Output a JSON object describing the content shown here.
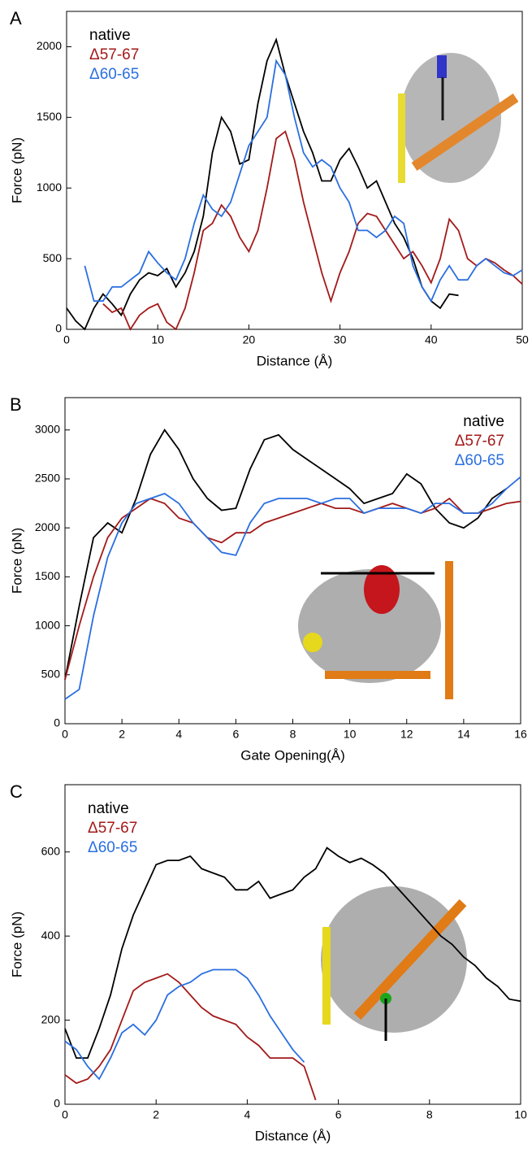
{
  "chart_data": [
    {
      "type": "line",
      "panel_label": "A",
      "xlabel": "Distance (Å)",
      "ylabel": "Force (pN)",
      "xlim": [
        0,
        50
      ],
      "xticks": [
        0,
        10,
        20,
        30,
        40,
        50
      ],
      "ylim": [
        0,
        2250
      ],
      "yticks": [
        0,
        500,
        1000,
        1500,
        2000
      ],
      "legend": "upper left",
      "x": [
        0,
        1,
        2,
        3,
        4,
        5,
        6,
        7,
        8,
        9,
        10,
        11,
        12,
        13,
        14,
        15,
        16,
        17,
        18,
        19,
        20,
        21,
        22,
        23,
        24,
        25,
        26,
        27,
        28,
        29,
        30,
        31,
        32,
        33,
        34,
        35,
        36,
        37,
        38,
        39,
        40,
        41,
        42,
        43,
        44,
        45,
        46,
        47,
        48,
        49,
        50
      ],
      "series": [
        {
          "name": "native",
          "color": "#000000",
          "values": [
            150,
            60,
            0,
            150,
            250,
            180,
            100,
            250,
            350,
            400,
            380,
            430,
            300,
            400,
            550,
            800,
            1250,
            1500,
            1400,
            1170,
            1200,
            1600,
            1900,
            2050,
            1800,
            1600,
            1400,
            1250,
            1050,
            1050,
            1200,
            1280,
            1150,
            1000,
            1050,
            900,
            750,
            650,
            500,
            300,
            200,
            150,
            250,
            240,
            null,
            null,
            null,
            null,
            null,
            null,
            null
          ]
        },
        {
          "name": "Δ57-67",
          "color": "#a31a1a",
          "values": [
            null,
            null,
            null,
            null,
            180,
            120,
            150,
            0,
            100,
            150,
            180,
            50,
            0,
            150,
            400,
            700,
            750,
            880,
            800,
            650,
            550,
            700,
            1000,
            1350,
            1400,
            1200,
            900,
            650,
            400,
            200,
            400,
            550,
            750,
            820,
            800,
            700,
            600,
            500,
            550,
            450,
            330,
            500,
            780,
            700,
            500,
            450,
            500,
            470,
            420,
            380,
            320
          ]
        },
        {
          "name": "Δ60-65",
          "color": "#2a6fe0",
          "values": [
            null,
            null,
            450,
            200,
            200,
            300,
            300,
            350,
            400,
            550,
            470,
            400,
            350,
            500,
            750,
            950,
            850,
            800,
            900,
            1100,
            1300,
            1400,
            1500,
            1900,
            1800,
            1500,
            1250,
            1150,
            1200,
            1150,
            1000,
            900,
            700,
            700,
            650,
            700,
            800,
            750,
            450,
            300,
            200,
            350,
            450,
            350,
            350,
            450,
            500,
            450,
            400,
            380,
            420
          ]
        }
      ]
    },
    {
      "type": "line",
      "panel_label": "B",
      "xlabel": "Gate Opening(Å)",
      "ylabel": "Force (pN)",
      "xlim": [
        0,
        16
      ],
      "xticks": [
        0,
        2,
        4,
        6,
        8,
        10,
        12,
        14,
        16
      ],
      "ylim": [
        0,
        3330
      ],
      "yticks": [
        0,
        500,
        1000,
        1500,
        2000,
        2500,
        3000
      ],
      "legend": "upper right",
      "x": [
        0,
        0.5,
        1,
        1.5,
        2,
        2.5,
        3,
        3.5,
        4,
        4.5,
        5,
        5.5,
        6,
        6.5,
        7,
        7.5,
        8,
        8.5,
        9,
        9.5,
        10,
        10.5,
        11,
        11.5,
        12,
        12.5,
        13,
        13.5,
        14,
        14.5,
        15,
        15.5,
        16
      ],
      "series": [
        {
          "name": "native",
          "color": "#000000",
          "values": [
            450,
            1200,
            1900,
            2050,
            1950,
            2300,
            2750,
            3000,
            2800,
            2500,
            2300,
            2180,
            2200,
            2600,
            2900,
            2950,
            2800,
            2700,
            2600,
            2500,
            2400,
            2250,
            2300,
            2350,
            2550,
            2450,
            2200,
            2050,
            2000,
            2100,
            2300,
            2400,
            null
          ]
        },
        {
          "name": "Δ57-67",
          "color": "#a31a1a",
          "values": [
            450,
            1000,
            1500,
            1900,
            2100,
            2200,
            2300,
            2250,
            2100,
            2050,
            1900,
            1850,
            1950,
            1950,
            2050,
            2100,
            2150,
            2200,
            2250,
            2200,
            2200,
            2150,
            2200,
            2250,
            2200,
            2150,
            2200,
            2300,
            2150,
            2150,
            2200,
            2250,
            2270
          ]
        },
        {
          "name": "Δ60-65",
          "color": "#2a6fe0",
          "values": [
            250,
            350,
            1100,
            1700,
            2050,
            2250,
            2300,
            2350,
            2250,
            2050,
            1900,
            1750,
            1720,
            2050,
            2250,
            2300,
            2300,
            2300,
            2250,
            2300,
            2300,
            2150,
            2200,
            2200,
            2200,
            2150,
            2250,
            2250,
            2150,
            2150,
            2250,
            2400,
            2520
          ]
        }
      ]
    },
    {
      "type": "line",
      "panel_label": "C",
      "xlabel": "Distance (Å)",
      "ylabel": "Force (pN)",
      "xlim": [
        0,
        10
      ],
      "xticks": [
        0,
        2,
        4,
        6,
        8,
        10
      ],
      "ylim": [
        0,
        760
      ],
      "yticks": [
        0,
        200,
        400,
        600
      ],
      "legend": "upper left",
      "x": [
        0,
        0.25,
        0.5,
        0.75,
        1,
        1.25,
        1.5,
        1.75,
        2,
        2.25,
        2.5,
        2.75,
        3,
        3.25,
        3.5,
        3.75,
        4,
        4.25,
        4.5,
        4.75,
        5,
        5.25,
        5.5,
        5.75,
        6,
        6.25,
        6.5,
        6.75,
        7,
        7.25,
        7.5,
        7.75,
        8,
        8.25,
        8.5,
        8.75,
        9,
        9.25,
        9.5,
        9.75,
        10
      ],
      "series": [
        {
          "name": "native",
          "color": "#000000",
          "values": [
            180,
            110,
            110,
            180,
            260,
            370,
            450,
            510,
            570,
            580,
            580,
            590,
            560,
            550,
            540,
            510,
            510,
            530,
            490,
            500,
            510,
            540,
            560,
            610,
            590,
            575,
            585,
            570,
            550,
            520,
            490,
            460,
            430,
            400,
            380,
            350,
            330,
            300,
            280,
            250,
            245
          ]
        },
        {
          "name": "Δ57-67",
          "color": "#a31a1a",
          "values": [
            70,
            50,
            60,
            90,
            130,
            200,
            270,
            290,
            300,
            310,
            290,
            260,
            230,
            210,
            200,
            190,
            160,
            140,
            110,
            110,
            110,
            90,
            10,
            null,
            null,
            null,
            null,
            null,
            null,
            null,
            null,
            null,
            null,
            null,
            null,
            null,
            null,
            null,
            null,
            null,
            null
          ]
        },
        {
          "name": "Δ60-65",
          "color": "#2a6fe0",
          "values": [
            150,
            130,
            90,
            60,
            110,
            170,
            190,
            165,
            200,
            260,
            280,
            290,
            310,
            320,
            320,
            320,
            300,
            260,
            210,
            170,
            130,
            100,
            null,
            null,
            null,
            null,
            null,
            null,
            null,
            null,
            null,
            null,
            null,
            null,
            null,
            null,
            null,
            null,
            null,
            null,
            null
          ]
        }
      ]
    }
  ]
}
